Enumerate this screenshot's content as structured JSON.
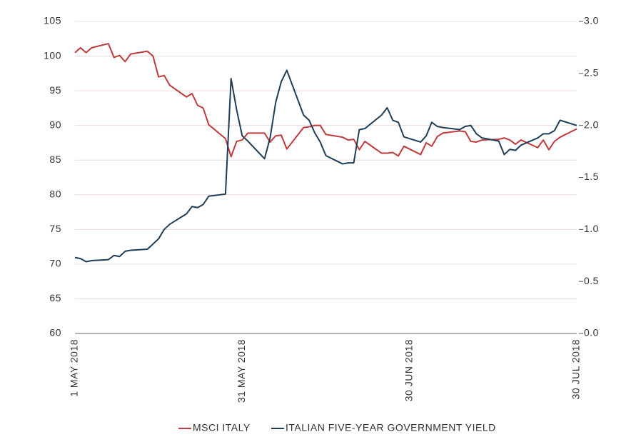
{
  "chart_data": {
    "type": "line",
    "x": [
      "2018-05-01",
      "2018-05-02",
      "2018-05-03",
      "2018-05-04",
      "2018-05-07",
      "2018-05-08",
      "2018-05-09",
      "2018-05-10",
      "2018-05-11",
      "2018-05-14",
      "2018-05-15",
      "2018-05-16",
      "2018-05-17",
      "2018-05-18",
      "2018-05-21",
      "2018-05-22",
      "2018-05-23",
      "2018-05-24",
      "2018-05-25",
      "2018-05-28",
      "2018-05-29",
      "2018-05-30",
      "2018-05-31",
      "2018-06-01",
      "2018-06-04",
      "2018-06-05",
      "2018-06-06",
      "2018-06-07",
      "2018-06-08",
      "2018-06-11",
      "2018-06-12",
      "2018-06-13",
      "2018-06-14",
      "2018-06-15",
      "2018-06-18",
      "2018-06-19",
      "2018-06-20",
      "2018-06-21",
      "2018-06-22",
      "2018-06-25",
      "2018-06-26",
      "2018-06-27",
      "2018-06-28",
      "2018-06-29",
      "2018-07-02",
      "2018-07-03",
      "2018-07-04",
      "2018-07-05",
      "2018-07-06",
      "2018-07-09",
      "2018-07-10",
      "2018-07-11",
      "2018-07-12",
      "2018-07-13",
      "2018-07-16",
      "2018-07-17",
      "2018-07-18",
      "2018-07-19",
      "2018-07-20",
      "2018-07-23",
      "2018-07-24",
      "2018-07-25",
      "2018-07-26",
      "2018-07-27",
      "2018-07-30"
    ],
    "series": [
      {
        "name": "MSCI ITALY",
        "color": "#c0393b",
        "axis": "y",
        "values": [
          100.5,
          101.2,
          100.5,
          101.2,
          101.8,
          99.8,
          100.1,
          99.2,
          100.3,
          100.7,
          100.0,
          97.0,
          97.2,
          95.8,
          94.1,
          94.6,
          92.9,
          92.5,
          90.1,
          88.1,
          85.5,
          87.7,
          87.9,
          88.9,
          88.9,
          87.6,
          88.5,
          88.6,
          86.6,
          89.7,
          89.8,
          90.0,
          90.0,
          88.7,
          88.3,
          87.9,
          88.0,
          86.5,
          87.7,
          86.0,
          86.0,
          86.1,
          85.6,
          87.0,
          85.8,
          87.5,
          87.0,
          88.4,
          88.9,
          89.2,
          89.1,
          87.7,
          87.6,
          87.9,
          88.0,
          88.2,
          87.9,
          87.3,
          87.9,
          86.8,
          87.9,
          86.5,
          87.7,
          88.3,
          89.5
        ]
      },
      {
        "name": "ITALIAN FIVE-YEAR GOVERNMENT YIELD",
        "color": "#1f3d55",
        "axis": "y2",
        "values": [
          0.73,
          0.72,
          0.69,
          0.7,
          0.71,
          0.75,
          0.74,
          0.79,
          0.8,
          0.81,
          0.86,
          0.91,
          1.0,
          1.05,
          1.15,
          1.22,
          1.21,
          1.24,
          1.32,
          1.34,
          2.45,
          2.15,
          1.9,
          1.85,
          1.68,
          1.88,
          2.22,
          2.42,
          2.53,
          2.1,
          2.05,
          1.93,
          1.84,
          1.71,
          1.63,
          1.64,
          1.64,
          1.96,
          1.97,
          2.1,
          2.17,
          2.05,
          2.03,
          1.89,
          1.84,
          1.9,
          2.03,
          1.99,
          1.98,
          1.96,
          1.99,
          2.0,
          1.92,
          1.88,
          1.85,
          1.72,
          1.77,
          1.76,
          1.81,
          1.88,
          1.92,
          1.92,
          1.95,
          2.05,
          2.0
        ]
      }
    ],
    "xlim": [
      "2018-05-01",
      "2018-07-30"
    ],
    "xticks": [
      {
        "value": "2018-05-01",
        "label": "1 MAY 2018"
      },
      {
        "value": "2018-05-31",
        "label": "31 MAY 2018"
      },
      {
        "value": "2018-06-30",
        "label": "30 JUN 2018"
      },
      {
        "value": "2018-07-30",
        "label": "30 JUL 2018"
      }
    ],
    "ylim": [
      60,
      105
    ],
    "yticks": [
      60,
      65,
      70,
      75,
      80,
      85,
      90,
      95,
      100,
      105
    ],
    "y2lim": [
      0,
      3
    ],
    "y2ticks": [
      {
        "value": 0,
        "label": "0.0"
      },
      0.5,
      {
        "value": 1,
        "label": "1.0"
      },
      1.5,
      {
        "value": 2,
        "label": "2.0"
      },
      2.5,
      {
        "value": 3,
        "label": "3.0"
      }
    ],
    "grid": true,
    "legend": "bottom"
  }
}
